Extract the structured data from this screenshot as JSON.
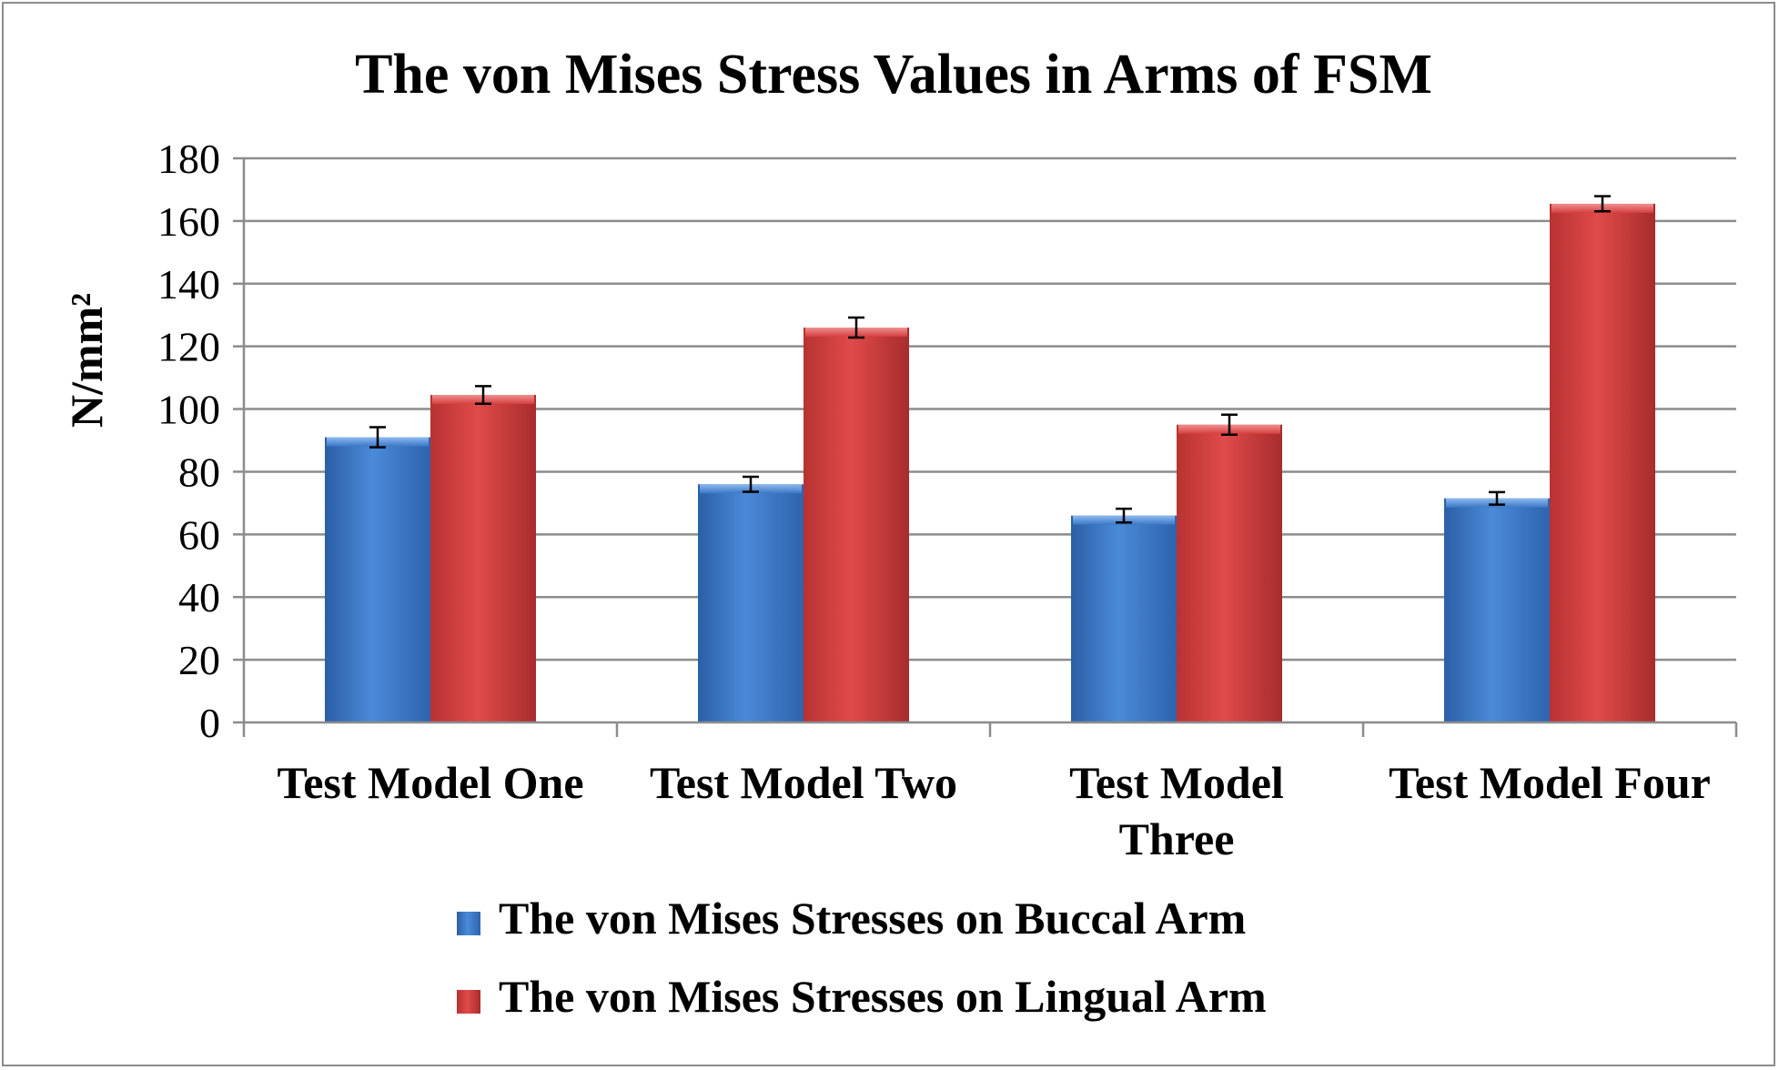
{
  "chart_data": {
    "type": "bar",
    "title": "The von Mises Stress Values in Arms of FSM",
    "ylabel": "N/mm²",
    "xlabel": "",
    "ylim": [
      0,
      180
    ],
    "yticks": [
      0,
      20,
      40,
      60,
      80,
      100,
      120,
      140,
      160,
      180
    ],
    "grid": true,
    "legend_position": "bottom",
    "categories": [
      [
        "Test Model One"
      ],
      [
        "Test Model Two"
      ],
      [
        "Test Model",
        "Three"
      ],
      [
        "Test Model Four"
      ]
    ],
    "series": [
      {
        "name": "The von Mises Stresses on Buccal Arm",
        "color": "#3b78c6",
        "values": [
          91,
          76,
          66,
          71.5
        ],
        "errors": [
          3.2,
          2.4,
          2.2,
          2.0
        ]
      },
      {
        "name": "The von Mises Stresses on Lingual Arm",
        "color": "#d53f3f",
        "values": [
          104.5,
          126,
          95,
          165.5
        ],
        "errors": [
          2.8,
          3.2,
          3.2,
          2.4
        ]
      }
    ]
  }
}
